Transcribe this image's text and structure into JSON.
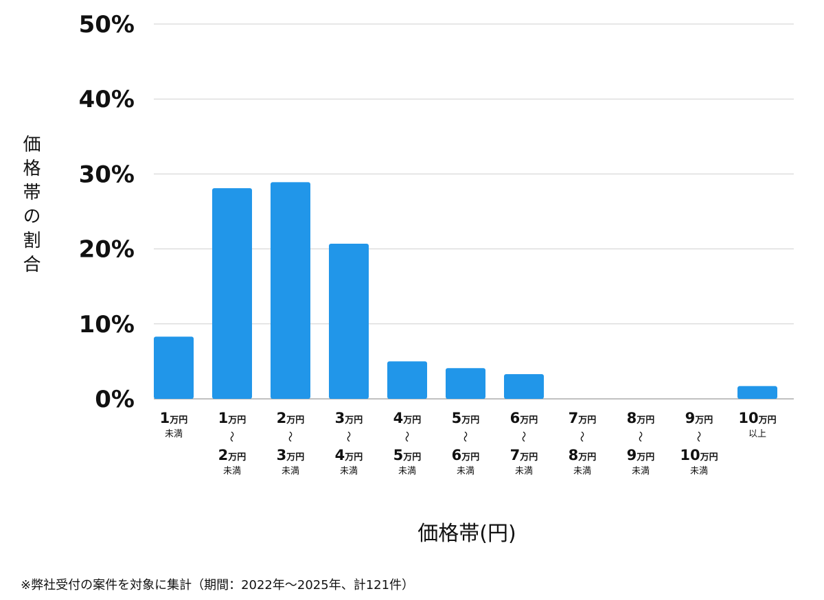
{
  "chart_data": {
    "type": "bar",
    "ylabel": "価格帯の割合",
    "xlabel": "価格帯(円)",
    "ylim": [
      0,
      50
    ],
    "yticks": [
      "0%",
      "10%",
      "20%",
      "30%",
      "40%",
      "50%"
    ],
    "grid": true,
    "bar_color": "#2196e9",
    "categories": [
      {
        "lines": [
          "1万円未満"
        ]
      },
      {
        "lines": [
          "1万円",
          "〜",
          "2万円未満"
        ]
      },
      {
        "lines": [
          "2万円",
          "〜",
          "3万円未満"
        ]
      },
      {
        "lines": [
          "3万円",
          "〜",
          "4万円未満"
        ]
      },
      {
        "lines": [
          "4万円",
          "〜",
          "5万円未満"
        ]
      },
      {
        "lines": [
          "5万円",
          "〜",
          "6万円未満"
        ]
      },
      {
        "lines": [
          "6万円",
          "〜",
          "7万円未満"
        ]
      },
      {
        "lines": [
          "7万円",
          "〜",
          "8万円未満"
        ]
      },
      {
        "lines": [
          "8万円",
          "〜",
          "9万円未満"
        ]
      },
      {
        "lines": [
          "9万円",
          "〜",
          "10万円未満"
        ]
      },
      {
        "lines": [
          "10万円以上"
        ]
      }
    ],
    "values": [
      8.3,
      28.1,
      28.9,
      20.7,
      5.0,
      4.1,
      3.3,
      0,
      0,
      0,
      1.7
    ]
  },
  "footnote": "※弊社受付の案件を対象に集計（期間：2022年〜2025年、計121件）"
}
